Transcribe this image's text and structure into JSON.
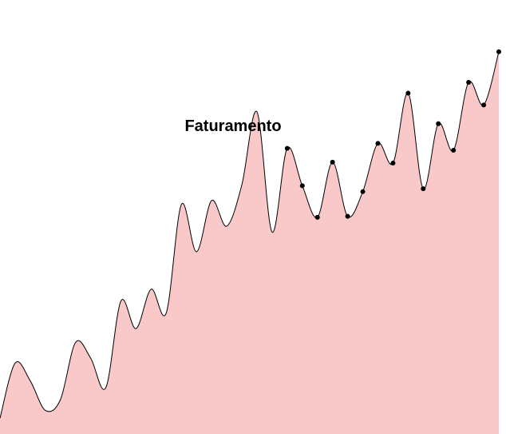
{
  "chart_data": {
    "type": "area",
    "title": "Faturamento",
    "xlabel": "",
    "ylabel": "",
    "grid": false,
    "legend": "none",
    "colors": {
      "fill": "#f9c8c8",
      "line": "#000000",
      "marker": "#000000"
    },
    "ylim": [
      0,
      400
    ],
    "series": [
      {
        "values": [
          16,
          72,
          54,
          24,
          35,
          93,
          77,
          47,
          135,
          107,
          147,
          123,
          233,
          185,
          237,
          211,
          253,
          327,
          205,
          290,
          252,
          220,
          276,
          221,
          246,
          295,
          275,
          346,
          249,
          315,
          288,
          357,
          334,
          388
        ],
        "marked_from_index": 19
      }
    ]
  }
}
